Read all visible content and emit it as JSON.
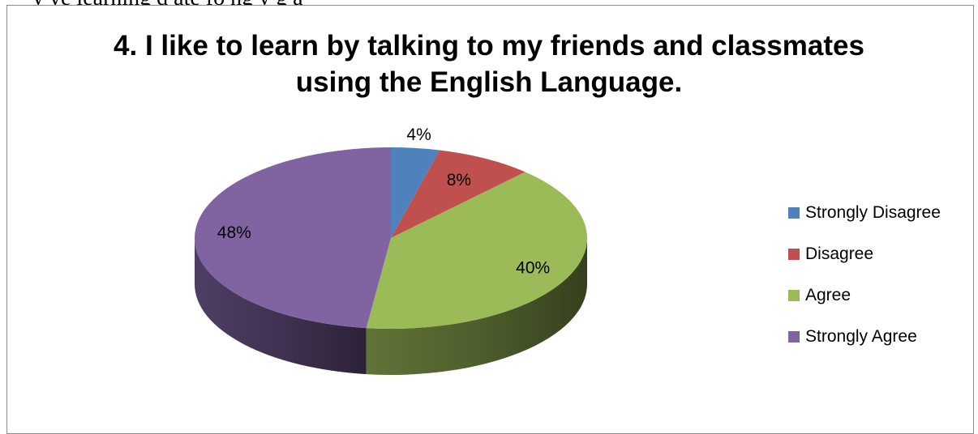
{
  "document": {
    "fragment_text": "y       ve learning     d    ate fo               ng y g      a"
  },
  "chart_data": {
    "type": "pie",
    "title_lines": [
      "4. I like to learn by talking to my friends and classmates",
      "using the English Language."
    ],
    "title": "4. I like to learn by talking to my friends and classmates using the English Language.",
    "categories": [
      "Strongly Disagree",
      "Disagree",
      "Agree",
      "Strongly Agree"
    ],
    "values": [
      4,
      8,
      40,
      48
    ],
    "labels": [
      "4%",
      "8%",
      "40%",
      "48%"
    ],
    "colors": [
      "#4f81bd",
      "#c0504d",
      "#9bbb59",
      "#8064a2"
    ],
    "legend_position": "right",
    "style": "3d-pie"
  }
}
